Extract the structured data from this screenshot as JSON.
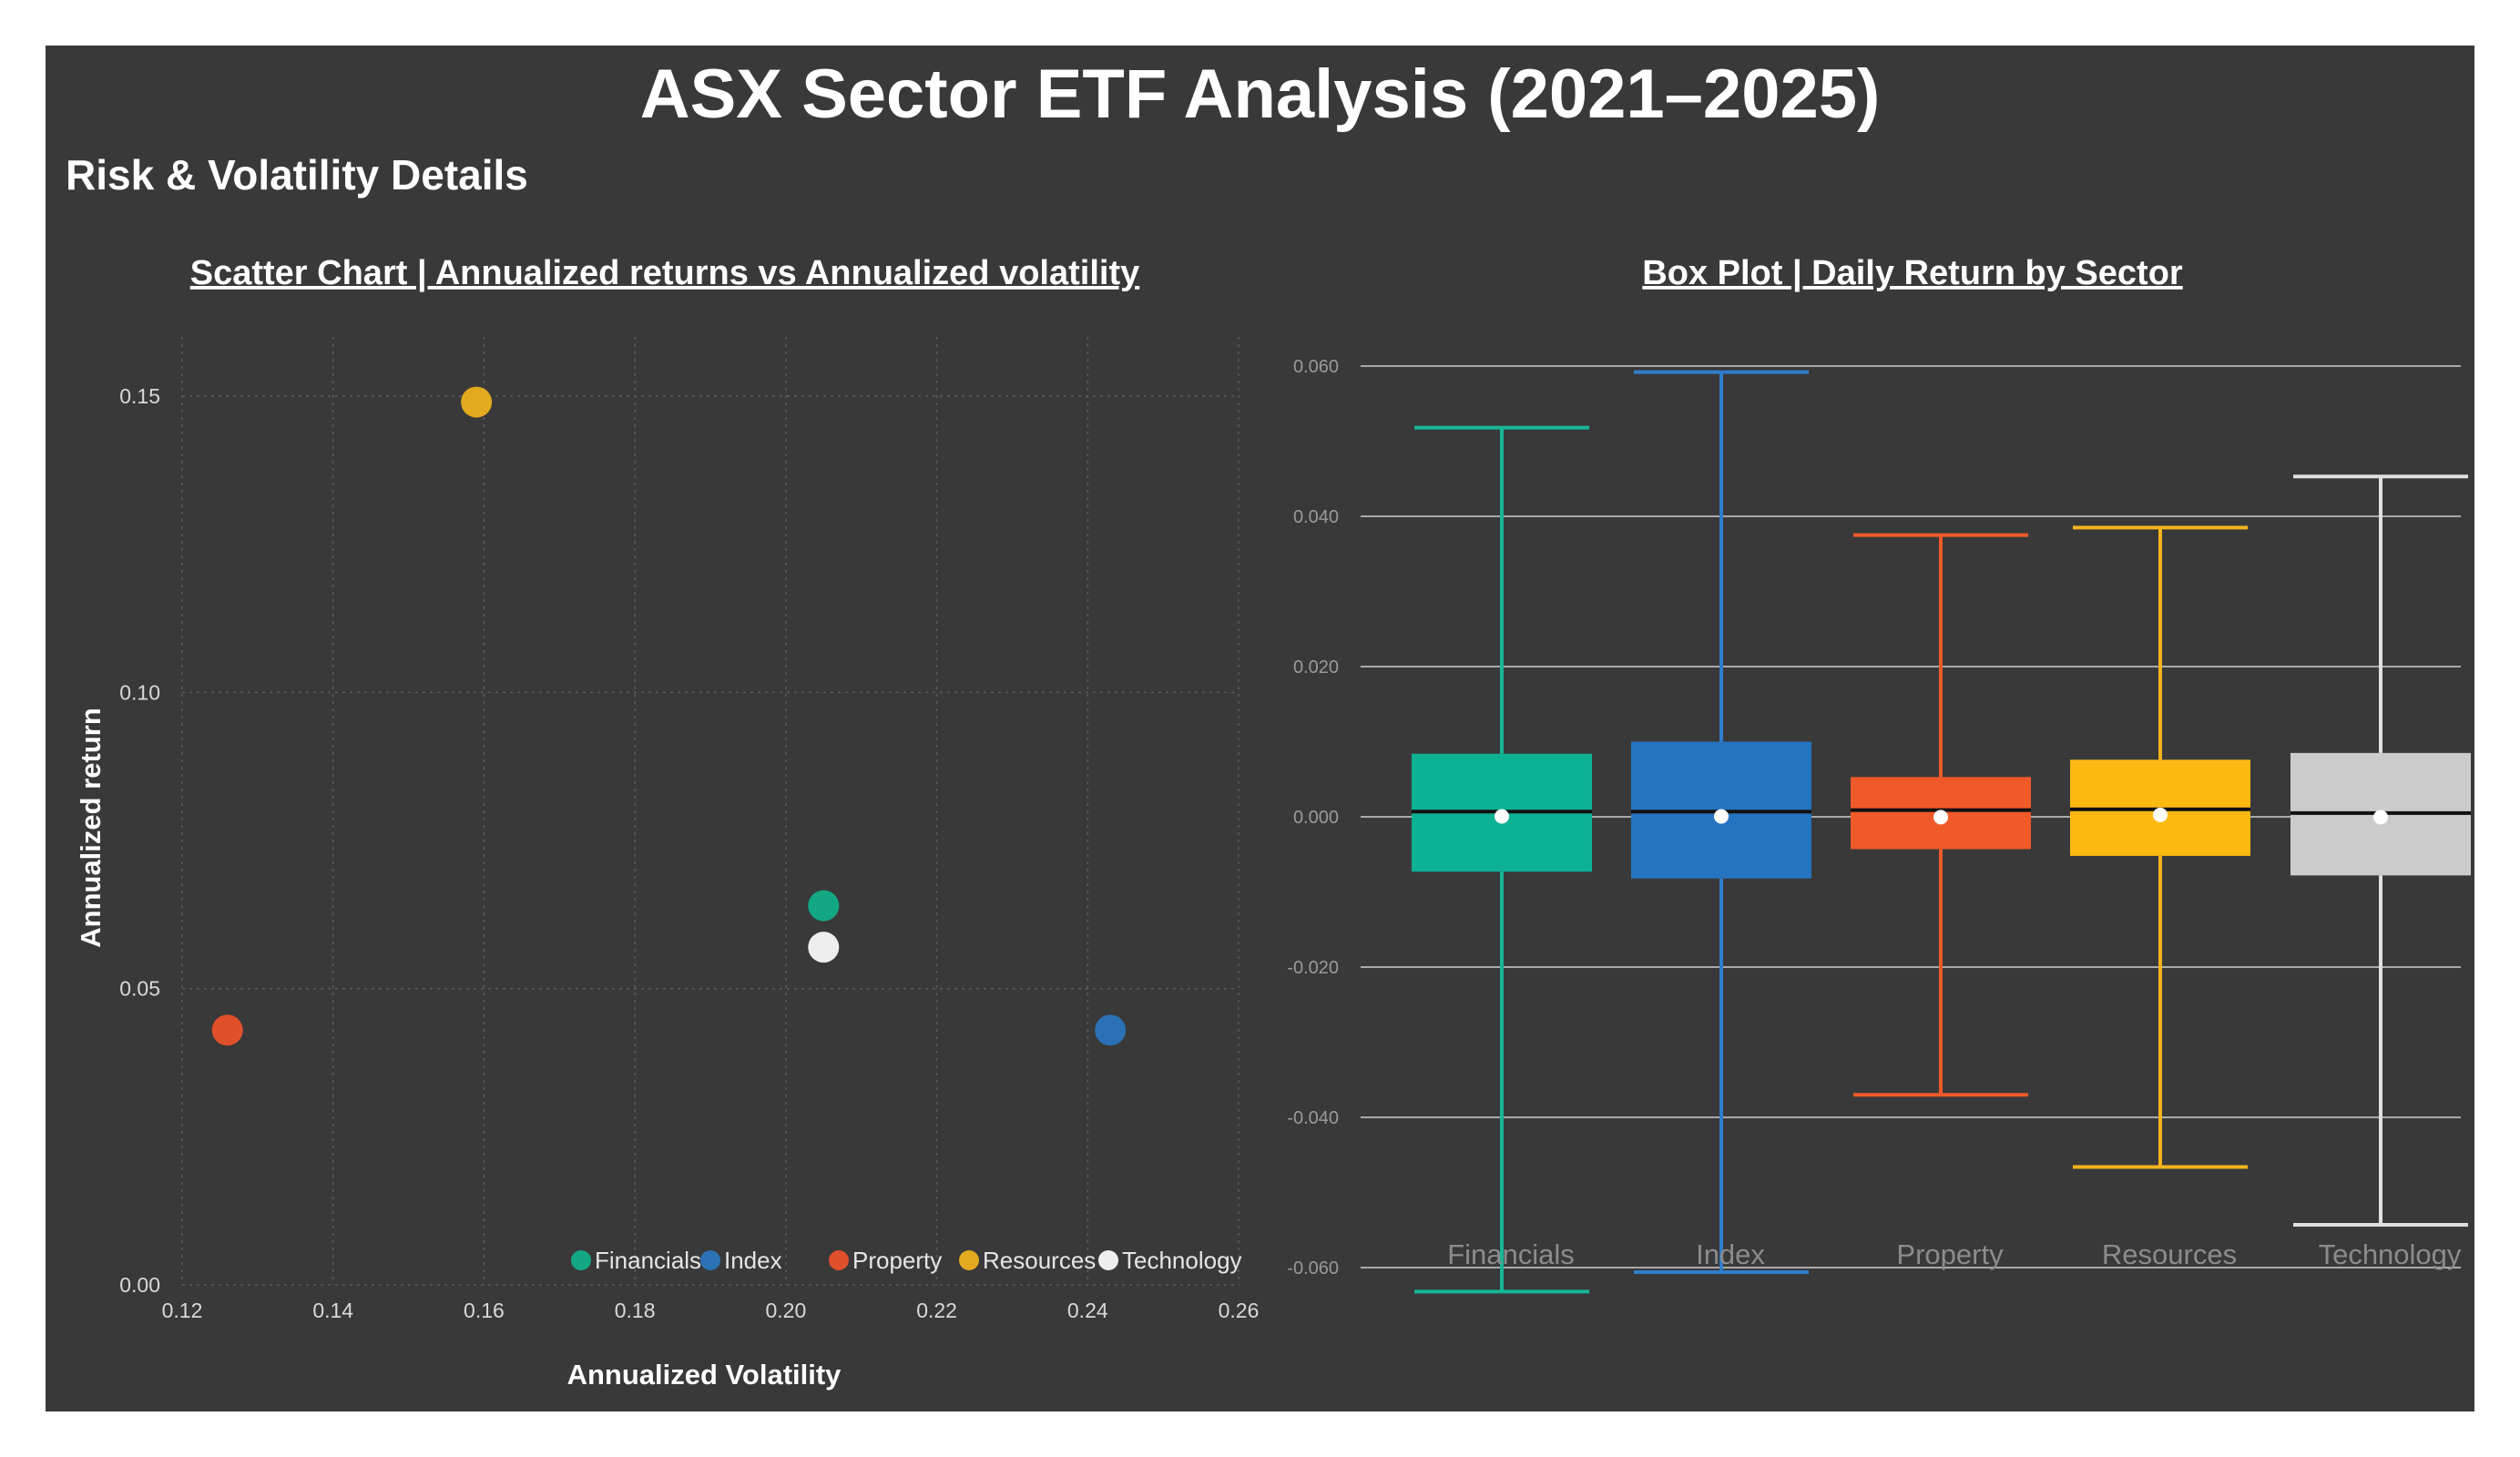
{
  "dashboard": {
    "title": "ASX Sector ETF Analysis (2021–2025)",
    "subtitle": "Risk & Volatility Details",
    "background": "#393939"
  },
  "chart_data": [
    {
      "type": "scatter",
      "title": "Scatter Chart | Annualized returns vs Annualized volatility",
      "xlabel": "Annualized Volatility",
      "ylabel": "Annualized return",
      "xlim": [
        0.12,
        0.26
      ],
      "ylim": [
        0.0,
        0.16
      ],
      "xticks": [
        "0.12",
        "0.14",
        "0.16",
        "0.18",
        "0.20",
        "0.22",
        "0.24",
        "0.26"
      ],
      "yticks": [
        "0.00",
        "0.05",
        "0.10",
        "0.15"
      ],
      "grid": true,
      "legend_position": "bottom-right",
      "series": [
        {
          "name": "Financials",
          "color": "#13a884",
          "x": 0.205,
          "y": 0.064
        },
        {
          "name": "Index",
          "color": "#2a72b5",
          "x": 0.243,
          "y": 0.043
        },
        {
          "name": "Property",
          "color": "#e0502b",
          "x": 0.126,
          "y": 0.043
        },
        {
          "name": "Resources",
          "color": "#e3aa1f",
          "x": 0.159,
          "y": 0.149
        },
        {
          "name": "Technology",
          "color": "#eeeeee",
          "x": 0.205,
          "y": 0.057
        }
      ]
    },
    {
      "type": "box",
      "title": "Box Plot | Daily Return by Sector",
      "ylim": [
        -0.065,
        0.064
      ],
      "yticks": [
        "0.060",
        "0.040",
        "0.020",
        "0.000",
        "-0.020",
        "-0.040",
        "-0.060"
      ],
      "grid": true,
      "categories": [
        "Financials",
        "Index",
        "Property",
        "Resources",
        "Technology"
      ],
      "series": [
        {
          "name": "Financials",
          "color": "#0db294",
          "whisker_color": "#19b797",
          "min": -0.0632,
          "q1": -0.0073,
          "median": 0.0007,
          "mean": 0.0003,
          "q3": 0.0084,
          "max": 0.0518
        },
        {
          "name": "Index",
          "color": "#2574c0",
          "whisker_color": "#2f7dcb",
          "min": -0.0606,
          "q1": -0.0082,
          "median": 0.0007,
          "mean": 0.0003,
          "q3": 0.01,
          "max": 0.0592
        },
        {
          "name": "Property",
          "color": "#f05a2a",
          "whisker_color": "#f05a2a",
          "min": -0.037,
          "q1": -0.0043,
          "median": 0.0009,
          "mean": 0.0002,
          "q3": 0.0053,
          "max": 0.0375
        },
        {
          "name": "Resources",
          "color": "#fbb912",
          "whisker_color": "#f4b31c",
          "min": -0.0466,
          "q1": -0.0052,
          "median": 0.001,
          "mean": 0.0005,
          "q3": 0.0076,
          "max": 0.0385
        },
        {
          "name": "Technology",
          "color": "#cbcbcb",
          "whisker_color": "#e0e0e0",
          "min": -0.0543,
          "q1": -0.0078,
          "median": 0.0005,
          "mean": 0.0002,
          "q3": 0.0085,
          "max": 0.0453
        }
      ]
    }
  ]
}
